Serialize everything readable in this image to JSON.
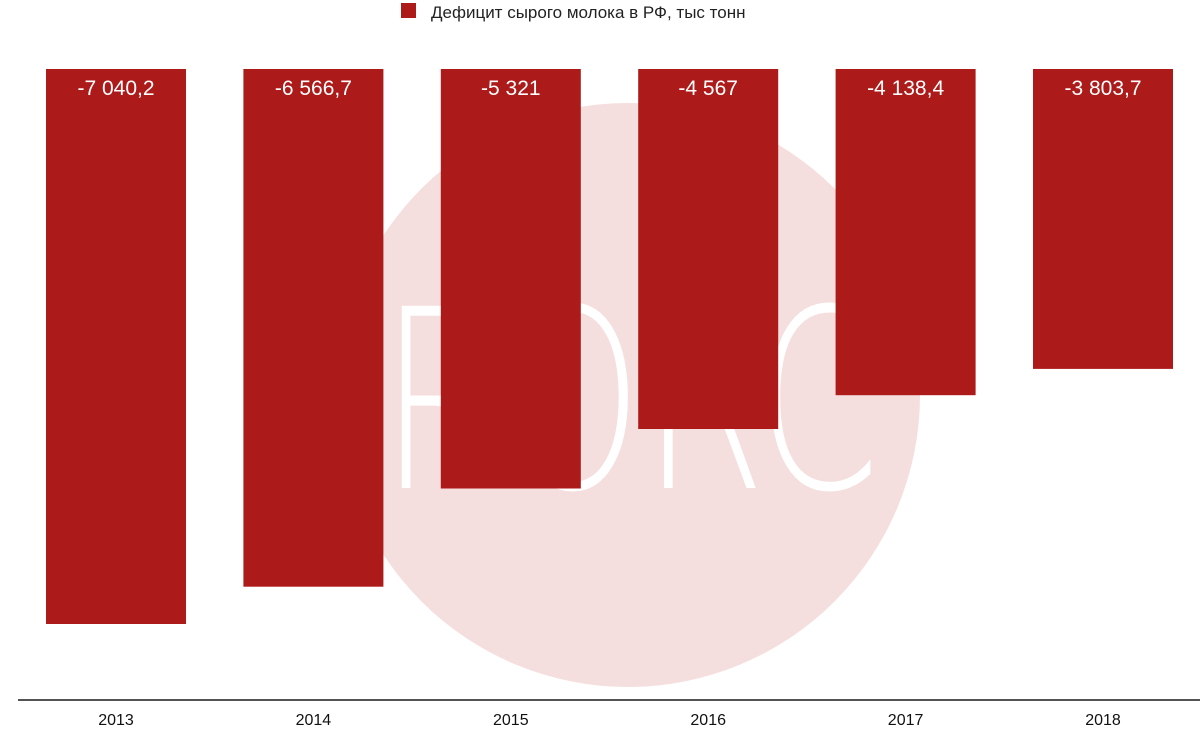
{
  "chart_data": {
    "type": "bar",
    "orientation": "vertical",
    "categories": [
      "2013",
      "2014",
      "2015",
      "2016",
      "2017",
      "2018"
    ],
    "series": [
      {
        "name": "Дефицит сырого молока в РФ, тыс тонн",
        "values": [
          -7040.2,
          -6566.7,
          -5321,
          -4567,
          -4138.4,
          -3803.7
        ],
        "labels": [
          "-7 040,2",
          "-6 566,7",
          "-5 321",
          "-4 567",
          "-4 138,4",
          "-3 803,7"
        ],
        "color": "#ad1a1a"
      }
    ],
    "title": "",
    "xlabel": "",
    "ylabel": "",
    "ylim": [
      -8000,
      0
    ],
    "grid": false,
    "legend": "top-center",
    "data_labels": "inside-top"
  },
  "watermark": {
    "text": "RORC",
    "circle_color": "#f5dede",
    "letter_color": "#ffffff"
  }
}
